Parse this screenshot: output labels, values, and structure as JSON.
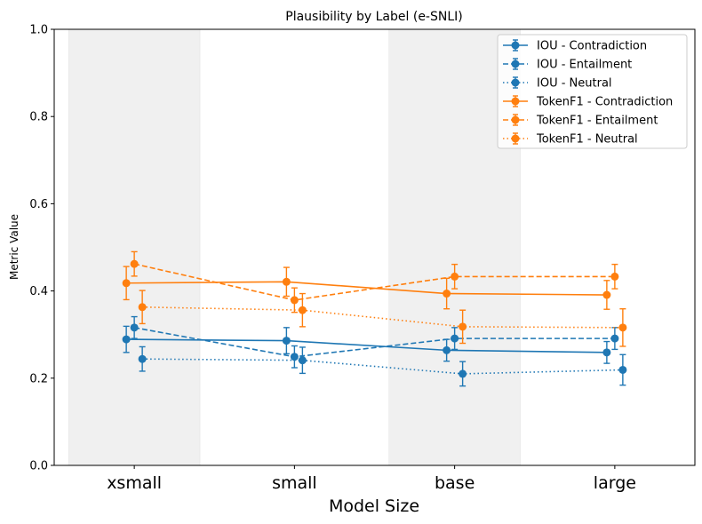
{
  "chart_data": {
    "type": "line",
    "title": "Plausibility by Label (e-SNLI)",
    "xlabel": "Model Size",
    "ylabel": "Metric Value",
    "categories": [
      "xsmall",
      "small",
      "base",
      "large"
    ],
    "ylim": [
      0,
      1
    ],
    "yticks": [
      "0.0",
      "0.2",
      "0.4",
      "0.6",
      "0.8",
      "1.0"
    ],
    "grid": false,
    "legend_position": "top-right",
    "shaded_categories": [
      "xsmall",
      "base"
    ],
    "shade_color": "#f0f0f0",
    "series": [
      {
        "name": "IOU - Contradiction",
        "color": "#1f77b4",
        "linestyle": "solid",
        "values": [
          0.289,
          0.286,
          0.264,
          0.259
        ],
        "errors": [
          0.03,
          0.03,
          0.025,
          0.025
        ]
      },
      {
        "name": "IOU - Entailment",
        "color": "#1f77b4",
        "linestyle": "dashed",
        "values": [
          0.316,
          0.249,
          0.291,
          0.291
        ],
        "errors": [
          0.025,
          0.025,
          0.025,
          0.025
        ]
      },
      {
        "name": "IOU - Neutral",
        "color": "#1f77b4",
        "linestyle": "dotted",
        "values": [
          0.244,
          0.241,
          0.21,
          0.219
        ],
        "errors": [
          0.028,
          0.03,
          0.028,
          0.035
        ]
      },
      {
        "name": "TokenF1 - Contradiction",
        "color": "#ff7f0e",
        "linestyle": "solid",
        "values": [
          0.418,
          0.421,
          0.394,
          0.391
        ],
        "errors": [
          0.038,
          0.033,
          0.035,
          0.033
        ]
      },
      {
        "name": "TokenF1 - Entailment",
        "color": "#ff7f0e",
        "linestyle": "dashed",
        "values": [
          0.462,
          0.379,
          0.433,
          0.433
        ],
        "errors": [
          0.028,
          0.028,
          0.028,
          0.028
        ]
      },
      {
        "name": "TokenF1 - Neutral",
        "color": "#ff7f0e",
        "linestyle": "dotted",
        "values": [
          0.363,
          0.356,
          0.318,
          0.316
        ],
        "errors": [
          0.038,
          0.038,
          0.038,
          0.043
        ]
      }
    ]
  }
}
